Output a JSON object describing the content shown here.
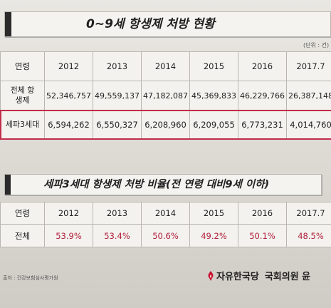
{
  "table1": {
    "title": "0~9세 항생제 처방 현황",
    "unit_note": "(단위 : 건)",
    "headers": [
      "연령",
      "2012",
      "2013",
      "2014",
      "2015",
      "2016",
      "2017.7"
    ],
    "rows": [
      {
        "label": "전체 항생제",
        "values": [
          "52,346,757",
          "49,559,137",
          "47,182,087",
          "45,369,833",
          "46,229,766",
          "26,387,148"
        ]
      },
      {
        "label": "세파3세대",
        "values": [
          "6,594,262",
          "6,550,327",
          "6,208,960",
          "6,209,055",
          "6,773,231",
          "4,014,760"
        ]
      }
    ],
    "highlight_color": "#c22c4a"
  },
  "table2": {
    "title": "세파3세대 항생제 처방 비율(전 연령 대비9세 이하)",
    "headers": [
      "연령",
      "2012",
      "2013",
      "2014",
      "2015",
      "2016",
      "2017.7"
    ],
    "rows": [
      {
        "label": "전체",
        "values": [
          "53.9%",
          "53.4%",
          "50.6%",
          "49.2%",
          "50.1%",
          "48.5%"
        ]
      }
    ],
    "percent_color": "#b21e3a"
  },
  "footer": {
    "source": "출처 : 건강보험심사평가원",
    "org": "자유한국당",
    "dept": "국회의원 윤"
  }
}
